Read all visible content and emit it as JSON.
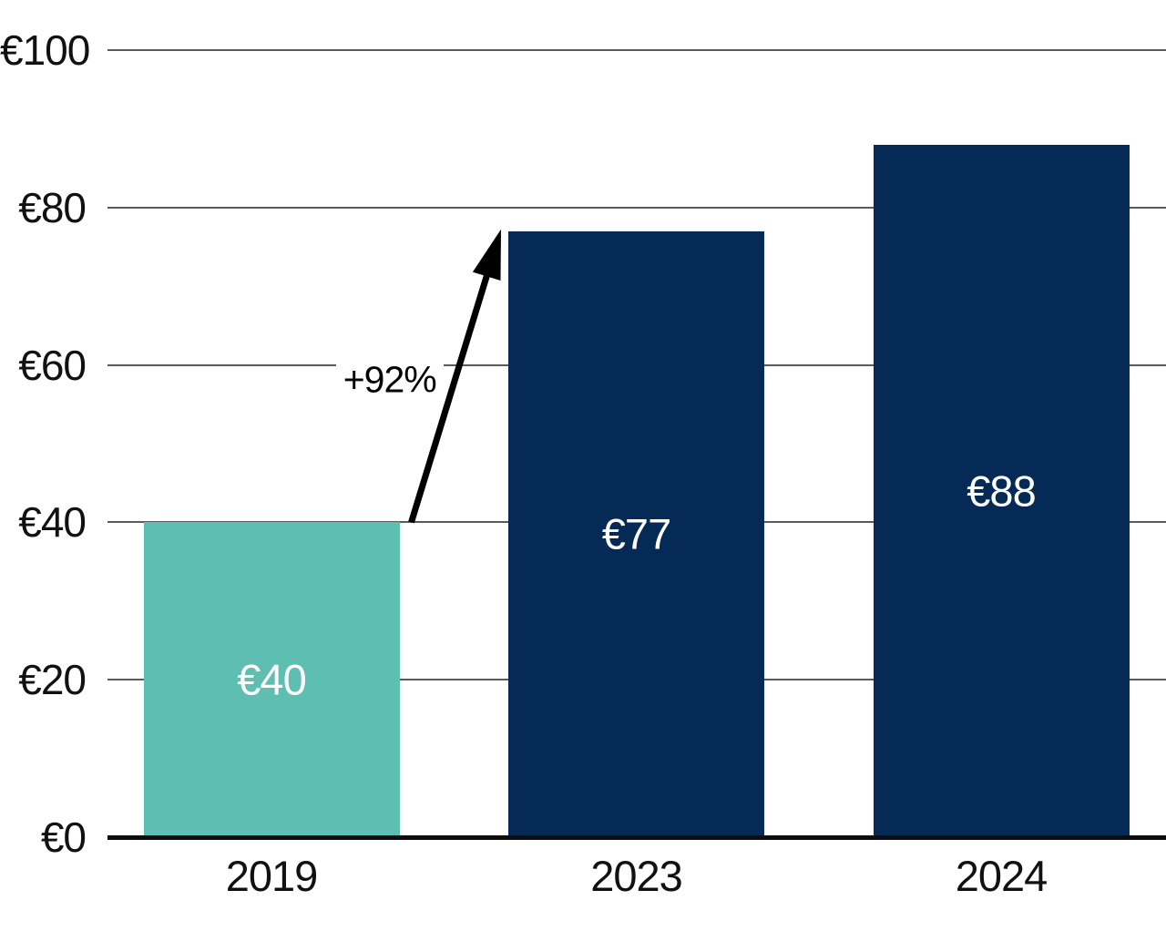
{
  "chart_data": {
    "type": "bar",
    "categories": [
      "2019",
      "2023",
      "2024"
    ],
    "values": [
      40,
      77,
      88
    ],
    "bar_labels": [
      "€40",
      "€77",
      "€88"
    ],
    "bar_colors": [
      "#5ebeb2",
      "#052a55",
      "#052a55"
    ],
    "bar_label_color": "#ffffff",
    "y_ticks": [
      0,
      20,
      40,
      60,
      80,
      100
    ],
    "y_tick_labels": [
      "€0",
      "€20",
      "€40",
      "€60",
      "€80",
      "€100"
    ],
    "ylim": [
      0,
      100
    ],
    "grid": true,
    "legend_position": "none",
    "title": "",
    "xlabel": "",
    "ylabel": "",
    "annotation": {
      "text": "+92%",
      "from_category": "2019",
      "to_category": "2023"
    }
  },
  "colors": {
    "teal_bar": "#5ebeb2",
    "navy_bar": "#052a55",
    "gridline": "#5a5a5a",
    "axis": "#0d0d0d",
    "tick_text": "#111111",
    "bar_label_text": "#ffffff",
    "arrow": "#000000",
    "background": "#ffffff"
  }
}
